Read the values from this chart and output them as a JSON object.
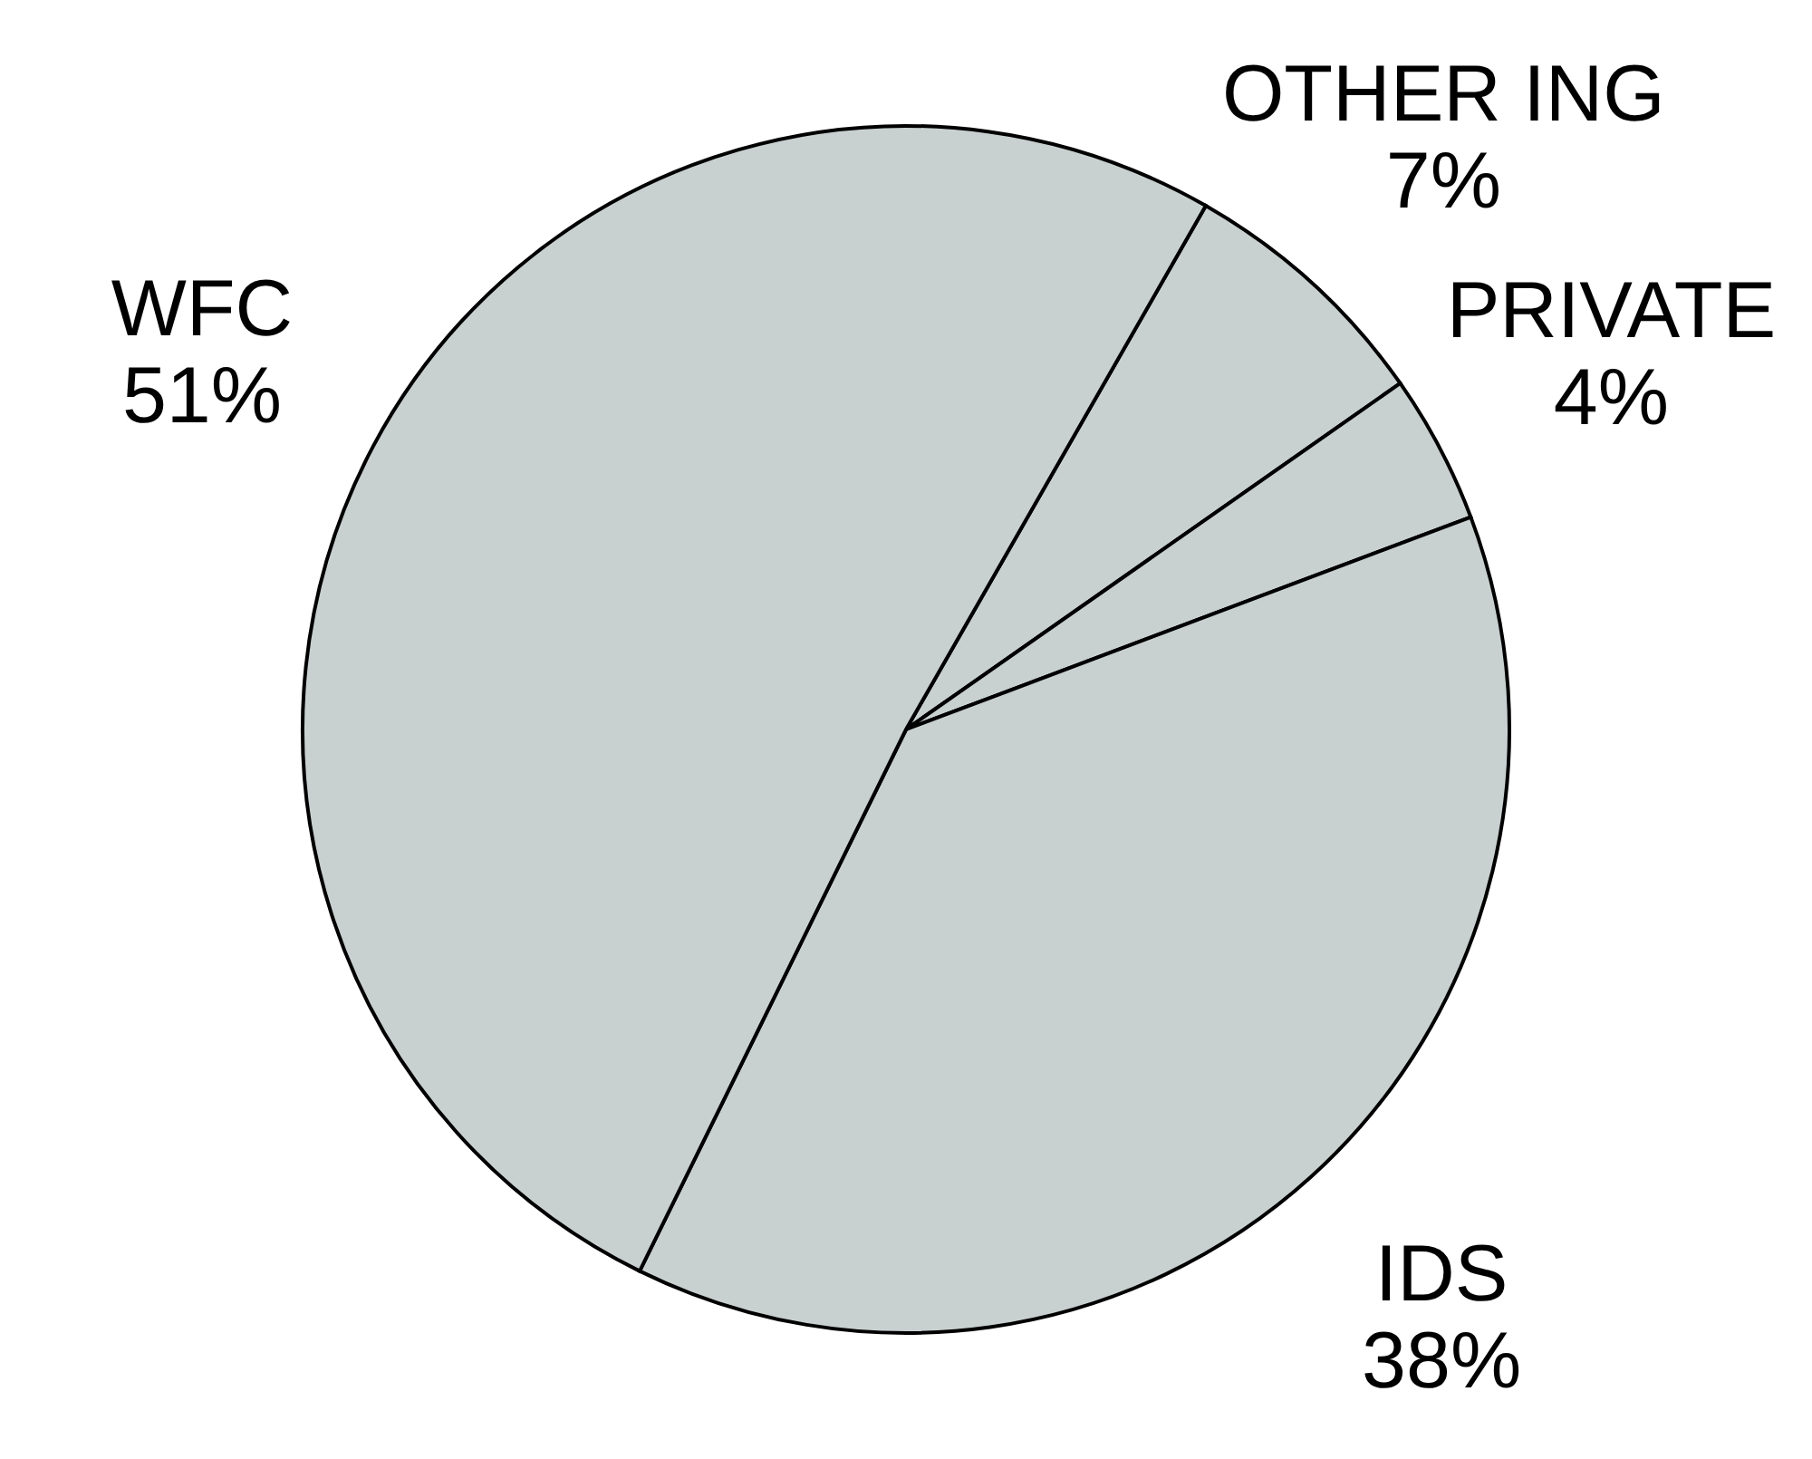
{
  "chart_data": {
    "type": "pie",
    "categories": [
      "OTHER ING",
      "PRIVATE",
      "IDS",
      "WFC"
    ],
    "values": [
      7,
      4,
      38,
      51
    ],
    "value_labels": [
      "7%",
      "4%",
      "38%",
      "51%"
    ],
    "colors": [
      "#c9d0d0",
      "#c9d0d0",
      "#c9d0d0",
      "#c9d0d0"
    ],
    "legend": false
  }
}
